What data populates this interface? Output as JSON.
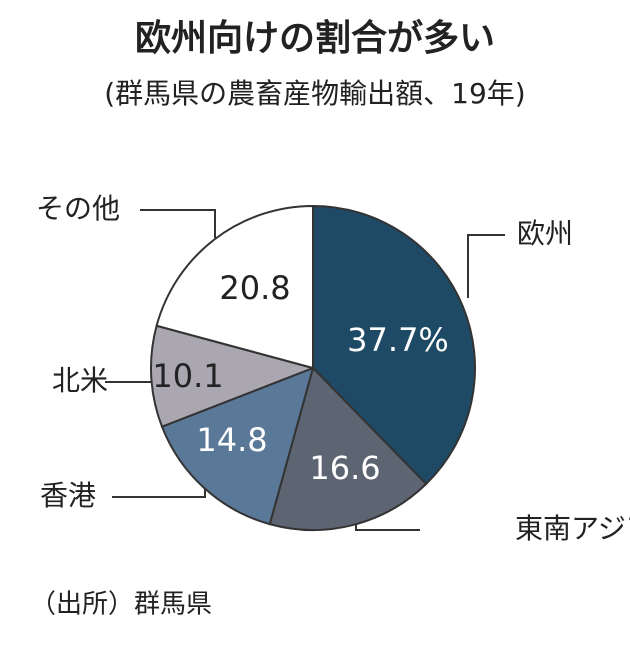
{
  "chart_data": {
    "type": "pie",
    "title": "欧州向けの割合が多い",
    "subtitle": "(群馬県の農畜産物輸出額、19年)",
    "source": "（出所）群馬県",
    "categories": [
      "欧州",
      "東南アジア",
      "香港",
      "北米",
      "その他"
    ],
    "values": [
      37.7,
      16.6,
      14.8,
      10.1,
      20.8
    ],
    "value_labels": [
      "37.7%",
      "16.6",
      "14.8",
      "10.1",
      "20.8"
    ],
    "colors": [
      "#1f4a66",
      "#5d6573",
      "#5a7898",
      "#aaa7b1",
      "#ffffff"
    ]
  }
}
